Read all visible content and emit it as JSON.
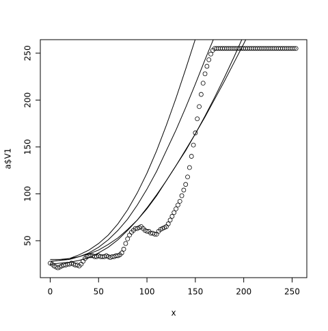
{
  "chart_data": {
    "type": "scatter",
    "xlabel": "x",
    "ylabel": "a$V1",
    "xlim": [
      -10.2,
      265.2
    ],
    "ylim": [
      10.6,
      264.4
    ],
    "xticks": [
      0,
      50,
      100,
      150,
      200,
      250
    ],
    "yticks": [
      50,
      100,
      150,
      200,
      250
    ],
    "series": [
      {
        "type": "scatter",
        "color": "#000000",
        "x": [
          0,
          2,
          4,
          6,
          8,
          10,
          12,
          14,
          16,
          18,
          20,
          22,
          24,
          26,
          28,
          30,
          32,
          34,
          36,
          38,
          40,
          42,
          44,
          46,
          48,
          50,
          52,
          54,
          56,
          58,
          60,
          62,
          64,
          66,
          68,
          70,
          72,
          74,
          76,
          78,
          80,
          82,
          84,
          86,
          88,
          90,
          92,
          94,
          96,
          98,
          100,
          102,
          104,
          106,
          108,
          110,
          112,
          114,
          116,
          118,
          120,
          122,
          124,
          126,
          128,
          130,
          132,
          134,
          136,
          138,
          140,
          142,
          144,
          146,
          148,
          150,
          152,
          154,
          156,
          158,
          160,
          162,
          164,
          166,
          168,
          170,
          172,
          174,
          176,
          178,
          180,
          182,
          184,
          186,
          188,
          190,
          192,
          194,
          196,
          198,
          200,
          202,
          204,
          206,
          208,
          210,
          212,
          214,
          216,
          218,
          220,
          222,
          224,
          226,
          228,
          230,
          232,
          234,
          236,
          238,
          240,
          242,
          244,
          246,
          248,
          250,
          252,
          254
        ],
        "values": [
          26,
          25,
          23,
          22,
          21,
          22,
          23,
          24,
          24,
          25,
          25,
          26,
          25,
          24,
          24,
          23,
          25,
          28,
          31,
          33,
          34,
          34,
          34,
          33,
          33,
          34,
          33,
          33,
          33,
          34,
          33,
          32,
          33,
          33,
          34,
          34,
          35,
          37,
          41,
          47,
          52,
          56,
          59,
          61,
          63,
          63,
          64,
          65,
          63,
          61,
          60,
          60,
          58,
          58,
          57,
          57,
          60,
          62,
          63,
          64,
          65,
          68,
          72,
          76,
          80,
          84,
          88,
          92,
          98,
          104,
          110,
          118,
          128,
          140,
          152,
          165,
          180,
          193,
          206,
          218,
          228,
          236,
          243,
          249,
          253,
          255,
          255,
          255,
          255,
          255,
          255,
          255,
          255,
          255,
          255,
          255,
          255,
          255,
          255,
          255,
          255,
          255,
          255,
          255,
          255,
          255,
          255,
          255,
          255,
          255,
          255,
          255,
          255,
          255,
          255,
          255,
          255,
          255,
          255,
          255,
          255,
          255,
          255,
          255,
          255,
          255,
          255,
          255
        ]
      },
      {
        "type": "line",
        "color": "#000000",
        "x": [
          0,
          10,
          20,
          30,
          40,
          50,
          60,
          70,
          80,
          90,
          100,
          110,
          120,
          130,
          140,
          150,
          160
        ],
        "values": [
          28,
          29,
          31,
          35,
          40,
          47,
          56,
          68,
          83,
          101,
          122,
          146,
          173,
          202,
          233,
          265,
          298
        ]
      },
      {
        "type": "line",
        "color": "#000000",
        "x": [
          0,
          10,
          20,
          30,
          40,
          50,
          60,
          70,
          80,
          90,
          100,
          110,
          120,
          130,
          140,
          150,
          160,
          170,
          180
        ],
        "values": [
          28,
          29,
          30,
          33,
          37,
          43,
          51,
          61,
          73,
          88,
          105,
          124,
          146,
          168,
          192,
          217,
          243,
          268,
          296
        ]
      },
      {
        "type": "line",
        "color": "#000000",
        "x": [
          0,
          10,
          20,
          30,
          40,
          50,
          60,
          70,
          80,
          90,
          100,
          110,
          120,
          130,
          140,
          150,
          160,
          170,
          180,
          190,
          200,
          210
        ],
        "values": [
          30,
          30,
          31,
          33,
          36,
          40,
          46,
          53,
          62,
          72,
          84,
          98,
          114,
          130,
          146,
          164,
          183,
          203,
          224,
          246,
          269,
          293
        ]
      },
      {
        "type": "line",
        "color": "#000000",
        "x": [
          0,
          10,
          20,
          30,
          40,
          50,
          60,
          70,
          80,
          90,
          100,
          110,
          120,
          130,
          140,
          150,
          160,
          170,
          180,
          190,
          200,
          210
        ],
        "values": [
          25,
          26,
          27,
          29,
          32,
          37,
          43,
          51,
          61,
          72,
          85,
          99,
          114,
          130,
          147,
          164,
          182,
          201,
          220,
          240,
          260,
          281
        ]
      }
    ]
  }
}
